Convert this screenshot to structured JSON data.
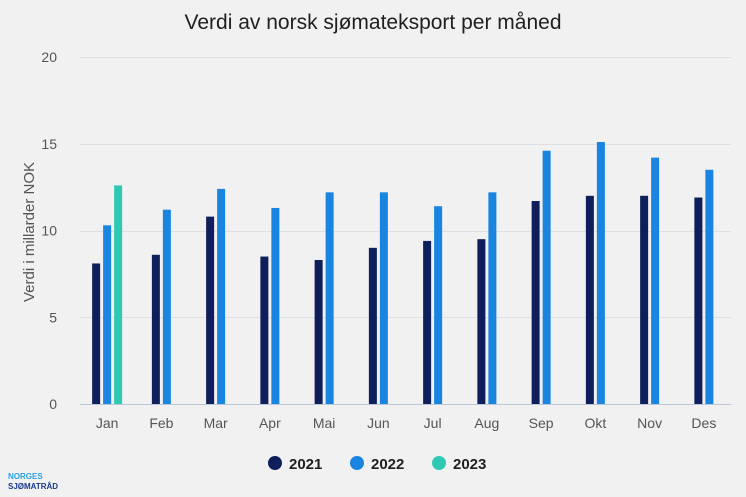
{
  "chart_data": {
    "type": "bar",
    "title": "Verdi av norsk sjømateksport per måned",
    "xlabel": "",
    "ylabel": "Verdi i millarder NOK",
    "ylim": [
      0,
      20
    ],
    "yticks": [
      0,
      5,
      10,
      15,
      20
    ],
    "grid": true,
    "legend_position": "bottom",
    "categories": [
      "Jan",
      "Feb",
      "Mar",
      "Apr",
      "Mai",
      "Jun",
      "Jul",
      "Aug",
      "Sep",
      "Okt",
      "Nov",
      "Des"
    ],
    "series": [
      {
        "name": "2021",
        "color": "#0e1f5b",
        "values": [
          8.1,
          8.6,
          10.8,
          8.5,
          8.3,
          9.0,
          9.4,
          9.5,
          11.7,
          12.0,
          12.0,
          11.9
        ]
      },
      {
        "name": "2022",
        "color": "#1a85e0",
        "values": [
          10.3,
          11.2,
          12.4,
          11.3,
          12.2,
          12.2,
          11.4,
          12.2,
          14.6,
          15.1,
          14.2,
          13.5
        ]
      },
      {
        "name": "2023",
        "color": "#2ec8b3",
        "values": [
          12.6,
          null,
          null,
          null,
          null,
          null,
          null,
          null,
          null,
          null,
          null,
          null
        ]
      }
    ]
  },
  "logo": {
    "line1": "NORGES",
    "line2": "SJØMATRÅD",
    "color": "#1a3a8c",
    "accent": "#2aa0e6"
  }
}
